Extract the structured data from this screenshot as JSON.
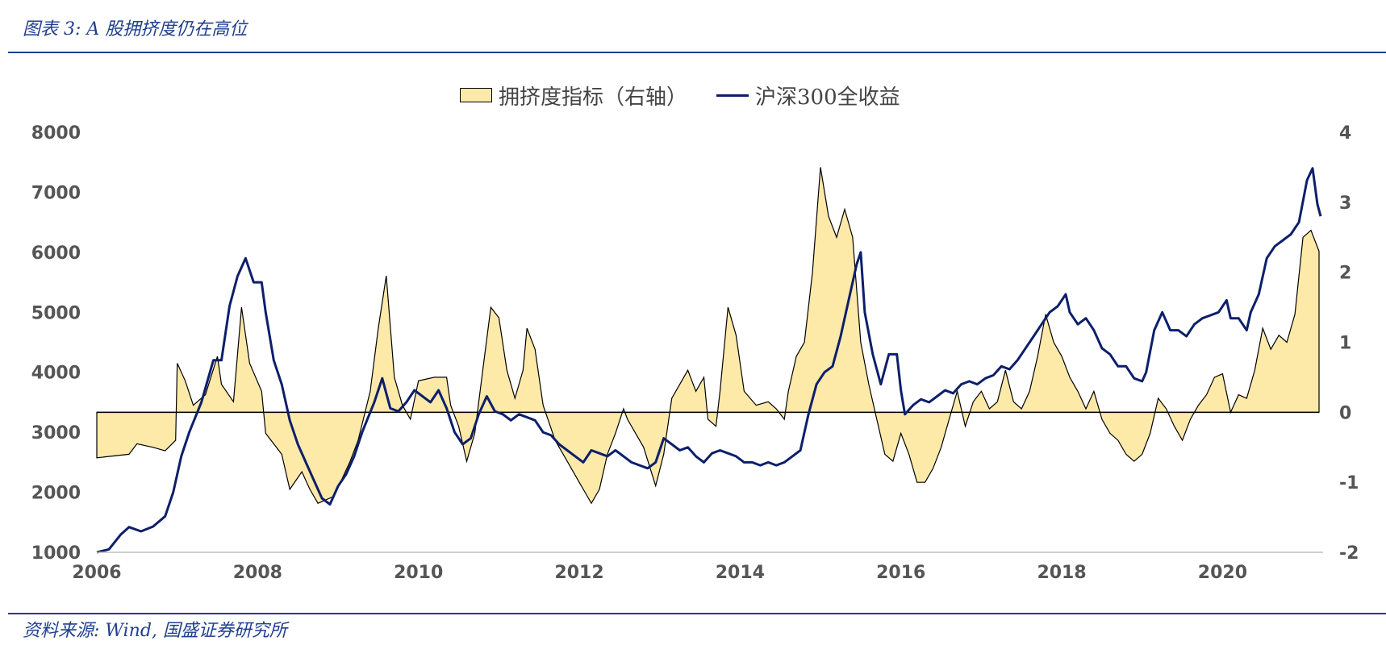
{
  "header": {
    "title": "图表 3:  A 股拥挤度仍在高位"
  },
  "footer": {
    "source": "资料来源: Wind, 国盛证券研究所"
  },
  "legend": {
    "area_label": "拥挤度指标（右轴）",
    "line_label": "沪深300全收益"
  },
  "colors": {
    "area_fill": "#fde9a8",
    "area_stroke": "#000000",
    "line": "#0d1f6b",
    "accent": "#1f3f8f"
  },
  "chart_data": {
    "type": "line",
    "title": "",
    "x_ticks": [
      "2006",
      "2008",
      "2010",
      "2012",
      "2014",
      "2016",
      "2018",
      "2020"
    ],
    "x_range": [
      2006,
      2021.25
    ],
    "y_left": {
      "ticks": [
        "1000",
        "2000",
        "3000",
        "4000",
        "5000",
        "6000",
        "7000",
        "8000"
      ],
      "range": [
        1000,
        8000
      ]
    },
    "y_right": {
      "ticks": [
        "-2",
        "-1",
        "0",
        "1",
        "2",
        "3",
        "4"
      ],
      "range": [
        -2,
        4
      ]
    },
    "series": [
      {
        "name": "拥挤度指标（右轴）",
        "axis": "right",
        "kind": "area",
        "points": [
          [
            2006.0,
            -0.65
          ],
          [
            2006.4,
            -0.6
          ],
          [
            2006.5,
            -0.45
          ],
          [
            2006.7,
            -0.5
          ],
          [
            2006.85,
            -0.55
          ],
          [
            2006.98,
            -0.4
          ],
          [
            2007.0,
            0.7
          ],
          [
            2007.1,
            0.45
          ],
          [
            2007.2,
            0.1
          ],
          [
            2007.35,
            0.25
          ],
          [
            2007.5,
            0.8
          ],
          [
            2007.55,
            0.4
          ],
          [
            2007.7,
            0.15
          ],
          [
            2007.8,
            1.5
          ],
          [
            2007.9,
            0.7
          ],
          [
            2008.05,
            0.3
          ],
          [
            2008.1,
            -0.3
          ],
          [
            2008.3,
            -0.6
          ],
          [
            2008.4,
            -1.1
          ],
          [
            2008.55,
            -0.85
          ],
          [
            2008.65,
            -1.1
          ],
          [
            2008.75,
            -1.3
          ],
          [
            2008.95,
            -1.2
          ],
          [
            2009.15,
            -0.7
          ],
          [
            2009.25,
            -0.4
          ],
          [
            2009.4,
            0.3
          ],
          [
            2009.5,
            1.2
          ],
          [
            2009.6,
            1.95
          ],
          [
            2009.7,
            0.5
          ],
          [
            2009.8,
            0.1
          ],
          [
            2009.9,
            -0.1
          ],
          [
            2010.0,
            0.45
          ],
          [
            2010.2,
            0.5
          ],
          [
            2010.35,
            0.5
          ],
          [
            2010.4,
            0.1
          ],
          [
            2010.5,
            -0.2
          ],
          [
            2010.6,
            -0.7
          ],
          [
            2010.7,
            -0.3
          ],
          [
            2010.8,
            0.6
          ],
          [
            2010.9,
            1.5
          ],
          [
            2011.0,
            1.35
          ],
          [
            2011.1,
            0.6
          ],
          [
            2011.2,
            0.2
          ],
          [
            2011.3,
            0.6
          ],
          [
            2011.35,
            1.2
          ],
          [
            2011.45,
            0.9
          ],
          [
            2011.55,
            0.1
          ],
          [
            2011.7,
            -0.4
          ],
          [
            2011.85,
            -0.7
          ],
          [
            2012.0,
            -1.0
          ],
          [
            2012.1,
            -1.2
          ],
          [
            2012.15,
            -1.3
          ],
          [
            2012.25,
            -1.1
          ],
          [
            2012.35,
            -0.6
          ],
          [
            2012.45,
            -0.3
          ],
          [
            2012.55,
            0.05
          ],
          [
            2012.6,
            -0.1
          ],
          [
            2012.8,
            -0.5
          ],
          [
            2012.95,
            -1.05
          ],
          [
            2013.05,
            -0.6
          ],
          [
            2013.15,
            0.2
          ],
          [
            2013.35,
            0.6
          ],
          [
            2013.45,
            0.3
          ],
          [
            2013.55,
            0.5
          ],
          [
            2013.6,
            -0.1
          ],
          [
            2013.7,
            -0.2
          ],
          [
            2013.75,
            0.3
          ],
          [
            2013.85,
            1.5
          ],
          [
            2013.95,
            1.1
          ],
          [
            2014.05,
            0.3
          ],
          [
            2014.2,
            0.1
          ],
          [
            2014.35,
            0.15
          ],
          [
            2014.45,
            0.05
          ],
          [
            2014.55,
            -0.1
          ],
          [
            2014.6,
            0.3
          ],
          [
            2014.7,
            0.8
          ],
          [
            2014.8,
            1.0
          ],
          [
            2014.9,
            2.0
          ],
          [
            2015.0,
            3.5
          ],
          [
            2015.1,
            2.8
          ],
          [
            2015.2,
            2.5
          ],
          [
            2015.3,
            2.9
          ],
          [
            2015.4,
            2.5
          ],
          [
            2015.5,
            1.0
          ],
          [
            2015.6,
            0.4
          ],
          [
            2015.7,
            -0.1
          ],
          [
            2015.8,
            -0.6
          ],
          [
            2015.9,
            -0.7
          ],
          [
            2016.0,
            -0.3
          ],
          [
            2016.1,
            -0.6
          ],
          [
            2016.2,
            -1.0
          ],
          [
            2016.3,
            -1.0
          ],
          [
            2016.4,
            -0.8
          ],
          [
            2016.5,
            -0.5
          ],
          [
            2016.6,
            -0.1
          ],
          [
            2016.7,
            0.3
          ],
          [
            2016.8,
            -0.2
          ],
          [
            2016.9,
            0.15
          ],
          [
            2017.0,
            0.3
          ],
          [
            2017.1,
            0.05
          ],
          [
            2017.2,
            0.15
          ],
          [
            2017.3,
            0.6
          ],
          [
            2017.4,
            0.15
          ],
          [
            2017.5,
            0.05
          ],
          [
            2017.6,
            0.3
          ],
          [
            2017.7,
            0.8
          ],
          [
            2017.8,
            1.4
          ],
          [
            2017.9,
            1.0
          ],
          [
            2018.0,
            0.8
          ],
          [
            2018.1,
            0.5
          ],
          [
            2018.2,
            0.3
          ],
          [
            2018.3,
            0.05
          ],
          [
            2018.4,
            0.3
          ],
          [
            2018.5,
            -0.1
          ],
          [
            2018.6,
            -0.3
          ],
          [
            2018.7,
            -0.4
          ],
          [
            2018.8,
            -0.6
          ],
          [
            2018.9,
            -0.7
          ],
          [
            2019.0,
            -0.6
          ],
          [
            2019.1,
            -0.3
          ],
          [
            2019.2,
            0.2
          ],
          [
            2019.3,
            0.05
          ],
          [
            2019.4,
            -0.2
          ],
          [
            2019.5,
            -0.4
          ],
          [
            2019.6,
            -0.1
          ],
          [
            2019.7,
            0.1
          ],
          [
            2019.8,
            0.25
          ],
          [
            2019.9,
            0.5
          ],
          [
            2020.0,
            0.55
          ],
          [
            2020.1,
            0.0
          ],
          [
            2020.2,
            0.25
          ],
          [
            2020.3,
            0.2
          ],
          [
            2020.4,
            0.6
          ],
          [
            2020.5,
            1.2
          ],
          [
            2020.6,
            0.9
          ],
          [
            2020.7,
            1.1
          ],
          [
            2020.8,
            1.0
          ],
          [
            2020.9,
            1.4
          ],
          [
            2021.0,
            2.5
          ],
          [
            2021.1,
            2.6
          ],
          [
            2021.2,
            2.3
          ]
        ]
      },
      {
        "name": "沪深300全收益",
        "axis": "left",
        "kind": "line",
        "points": [
          [
            2006.0,
            1000
          ],
          [
            2006.15,
            1050
          ],
          [
            2006.3,
            1300
          ],
          [
            2006.4,
            1420
          ],
          [
            2006.55,
            1350
          ],
          [
            2006.7,
            1430
          ],
          [
            2006.85,
            1600
          ],
          [
            2006.95,
            2000
          ],
          [
            2007.05,
            2600
          ],
          [
            2007.15,
            3000
          ],
          [
            2007.3,
            3500
          ],
          [
            2007.45,
            4200
          ],
          [
            2007.55,
            4200
          ],
          [
            2007.65,
            5100
          ],
          [
            2007.75,
            5600
          ],
          [
            2007.85,
            5900
          ],
          [
            2007.95,
            5500
          ],
          [
            2008.05,
            5500
          ],
          [
            2008.1,
            5000
          ],
          [
            2008.2,
            4200
          ],
          [
            2008.3,
            3800
          ],
          [
            2008.4,
            3200
          ],
          [
            2008.5,
            2800
          ],
          [
            2008.6,
            2500
          ],
          [
            2008.7,
            2200
          ],
          [
            2008.8,
            1900
          ],
          [
            2008.9,
            1800
          ],
          [
            2009.0,
            2100
          ],
          [
            2009.1,
            2300
          ],
          [
            2009.2,
            2600
          ],
          [
            2009.3,
            3000
          ],
          [
            2009.45,
            3500
          ],
          [
            2009.55,
            3900
          ],
          [
            2009.65,
            3400
          ],
          [
            2009.75,
            3350
          ],
          [
            2009.85,
            3500
          ],
          [
            2009.95,
            3700
          ],
          [
            2010.05,
            3600
          ],
          [
            2010.15,
            3500
          ],
          [
            2010.25,
            3700
          ],
          [
            2010.35,
            3400
          ],
          [
            2010.45,
            3000
          ],
          [
            2010.55,
            2800
          ],
          [
            2010.65,
            2900
          ],
          [
            2010.75,
            3300
          ],
          [
            2010.85,
            3600
          ],
          [
            2010.95,
            3350
          ],
          [
            2011.05,
            3300
          ],
          [
            2011.15,
            3200
          ],
          [
            2011.25,
            3300
          ],
          [
            2011.35,
            3250
          ],
          [
            2011.45,
            3200
          ],
          [
            2011.55,
            3000
          ],
          [
            2011.65,
            2950
          ],
          [
            2011.75,
            2800
          ],
          [
            2011.85,
            2700
          ],
          [
            2011.95,
            2600
          ],
          [
            2012.05,
            2500
          ],
          [
            2012.15,
            2700
          ],
          [
            2012.25,
            2650
          ],
          [
            2012.35,
            2600
          ],
          [
            2012.45,
            2700
          ],
          [
            2012.55,
            2600
          ],
          [
            2012.65,
            2500
          ],
          [
            2012.75,
            2450
          ],
          [
            2012.85,
            2400
          ],
          [
            2012.95,
            2500
          ],
          [
            2013.05,
            2900
          ],
          [
            2013.15,
            2800
          ],
          [
            2013.25,
            2700
          ],
          [
            2013.35,
            2750
          ],
          [
            2013.45,
            2600
          ],
          [
            2013.55,
            2500
          ],
          [
            2013.65,
            2650
          ],
          [
            2013.75,
            2700
          ],
          [
            2013.85,
            2650
          ],
          [
            2013.95,
            2600
          ],
          [
            2014.05,
            2500
          ],
          [
            2014.15,
            2500
          ],
          [
            2014.25,
            2450
          ],
          [
            2014.35,
            2500
          ],
          [
            2014.45,
            2450
          ],
          [
            2014.55,
            2500
          ],
          [
            2014.65,
            2600
          ],
          [
            2014.75,
            2700
          ],
          [
            2014.85,
            3300
          ],
          [
            2014.95,
            3800
          ],
          [
            2015.05,
            4000
          ],
          [
            2015.15,
            4100
          ],
          [
            2015.25,
            4600
          ],
          [
            2015.35,
            5200
          ],
          [
            2015.45,
            5800
          ],
          [
            2015.5,
            6000
          ],
          [
            2015.55,
            5000
          ],
          [
            2015.65,
            4300
          ],
          [
            2015.75,
            3800
          ],
          [
            2015.85,
            4300
          ],
          [
            2015.95,
            4300
          ],
          [
            2016.0,
            3700
          ],
          [
            2016.05,
            3300
          ],
          [
            2016.15,
            3450
          ],
          [
            2016.25,
            3550
          ],
          [
            2016.35,
            3500
          ],
          [
            2016.45,
            3600
          ],
          [
            2016.55,
            3700
          ],
          [
            2016.65,
            3650
          ],
          [
            2016.75,
            3800
          ],
          [
            2016.85,
            3850
          ],
          [
            2016.95,
            3800
          ],
          [
            2017.05,
            3900
          ],
          [
            2017.15,
            3950
          ],
          [
            2017.25,
            4100
          ],
          [
            2017.35,
            4050
          ],
          [
            2017.45,
            4200
          ],
          [
            2017.55,
            4400
          ],
          [
            2017.65,
            4600
          ],
          [
            2017.75,
            4800
          ],
          [
            2017.85,
            5000
          ],
          [
            2017.95,
            5100
          ],
          [
            2018.05,
            5300
          ],
          [
            2018.1,
            5000
          ],
          [
            2018.2,
            4800
          ],
          [
            2018.3,
            4900
          ],
          [
            2018.4,
            4700
          ],
          [
            2018.5,
            4400
          ],
          [
            2018.6,
            4300
          ],
          [
            2018.7,
            4100
          ],
          [
            2018.8,
            4100
          ],
          [
            2018.9,
            3900
          ],
          [
            2019.0,
            3850
          ],
          [
            2019.05,
            4000
          ],
          [
            2019.15,
            4700
          ],
          [
            2019.25,
            5000
          ],
          [
            2019.35,
            4700
          ],
          [
            2019.45,
            4700
          ],
          [
            2019.55,
            4600
          ],
          [
            2019.65,
            4800
          ],
          [
            2019.75,
            4900
          ],
          [
            2019.85,
            4950
          ],
          [
            2019.95,
            5000
          ],
          [
            2020.05,
            5200
          ],
          [
            2020.1,
            4900
          ],
          [
            2020.2,
            4900
          ],
          [
            2020.3,
            4700
          ],
          [
            2020.35,
            5000
          ],
          [
            2020.45,
            5300
          ],
          [
            2020.55,
            5900
          ],
          [
            2020.65,
            6100
          ],
          [
            2020.75,
            6200
          ],
          [
            2020.85,
            6300
          ],
          [
            2020.95,
            6500
          ],
          [
            2021.05,
            7200
          ],
          [
            2021.12,
            7400
          ],
          [
            2021.18,
            6800
          ],
          [
            2021.22,
            6600
          ]
        ]
      }
    ]
  }
}
